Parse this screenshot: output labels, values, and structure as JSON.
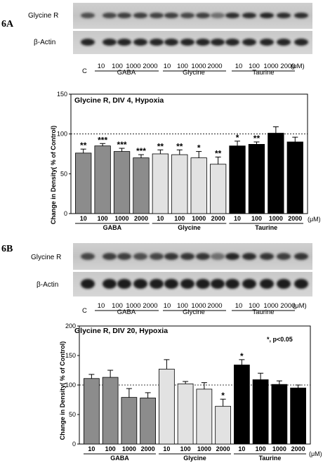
{
  "panels": [
    {
      "label": "6A",
      "blot": {
        "rows": [
          "Glycine R",
          "β-Actin"
        ],
        "control_label": "C",
        "lane_labels": [
          "10",
          "100",
          "1000",
          "2000",
          "10",
          "100",
          "1000",
          "2000",
          "10",
          "100",
          "1000",
          "2000"
        ],
        "unit": "(μM)",
        "groups": [
          "GABA",
          "Glycine",
          "Taurine"
        ]
      }
    },
    {
      "label": "6B",
      "blot": {
        "rows": [
          "Glycine R",
          "β-Actin"
        ],
        "control_label": "C",
        "lane_labels": [
          "10",
          "100",
          "1000",
          "2000",
          "10",
          "100",
          "1000",
          "2000",
          "10",
          "100",
          "1000",
          "2000"
        ],
        "unit": "(μM)",
        "groups": [
          "GABA",
          "Glycine",
          "Taurine"
        ]
      }
    }
  ],
  "chart_data": [
    {
      "type": "bar",
      "title": "Glycine R, DIV 4, Hypoxia",
      "ylabel": "Change in Density( % of Control)",
      "unit": "(μM)",
      "ylim": [
        0,
        150
      ],
      "yticks": [
        "0",
        "50",
        "100",
        "150"
      ],
      "reference_line": 100,
      "groups": [
        "GABA",
        "Glycine",
        "Taurine"
      ],
      "categories": [
        "10",
        "100",
        "1000",
        "2000",
        "10",
        "100",
        "1000",
        "2000",
        "10",
        "100",
        "1000",
        "2000"
      ],
      "values": [
        76,
        85,
        78,
        70,
        75,
        74,
        70,
        62,
        85,
        87,
        101,
        90
      ],
      "errors": [
        5,
        3,
        4,
        4,
        5,
        6,
        8,
        9,
        6,
        3,
        8,
        6
      ],
      "significance": [
        "**",
        "***",
        "***",
        "***",
        "**",
        "**",
        "*",
        "**",
        "*",
        "**",
        "",
        ""
      ],
      "colors": [
        "#8c8c8c",
        "#8c8c8c",
        "#8c8c8c",
        "#8c8c8c",
        "#e2e2e2",
        "#e2e2e2",
        "#e2e2e2",
        "#e2e2e2",
        "#000000",
        "#000000",
        "#000000",
        "#000000"
      ],
      "legend_note": "",
      "grid": false
    },
    {
      "type": "bar",
      "title": "Glycine R, DIV 20, Hypoxia",
      "ylabel": "Change in Density( % of Control)",
      "unit": "(μM)",
      "ylim": [
        0,
        200
      ],
      "yticks": [
        "0",
        "50",
        "100",
        "150",
        "200"
      ],
      "reference_line": 100,
      "groups": [
        "GABA",
        "Glycine",
        "Taurine"
      ],
      "categories": [
        "10",
        "100",
        "1000",
        "2000",
        "10",
        "100",
        "1000",
        "2000",
        "10",
        "100",
        "1000",
        "2000"
      ],
      "values": [
        111,
        113,
        79,
        78,
        127,
        102,
        93,
        64,
        134,
        109,
        101,
        95
      ],
      "errors": [
        7,
        12,
        15,
        9,
        16,
        4,
        11,
        12,
        9,
        11,
        6,
        5
      ],
      "significance": [
        "",
        "",
        "",
        "",
        "",
        "",
        "",
        "*",
        "*",
        "",
        "",
        ""
      ],
      "colors": [
        "#8c8c8c",
        "#8c8c8c",
        "#8c8c8c",
        "#8c8c8c",
        "#e2e2e2",
        "#e2e2e2",
        "#e2e2e2",
        "#e2e2e2",
        "#000000",
        "#000000",
        "#000000",
        "#000000"
      ],
      "legend_note": "*, p<0.05",
      "grid": false
    }
  ]
}
